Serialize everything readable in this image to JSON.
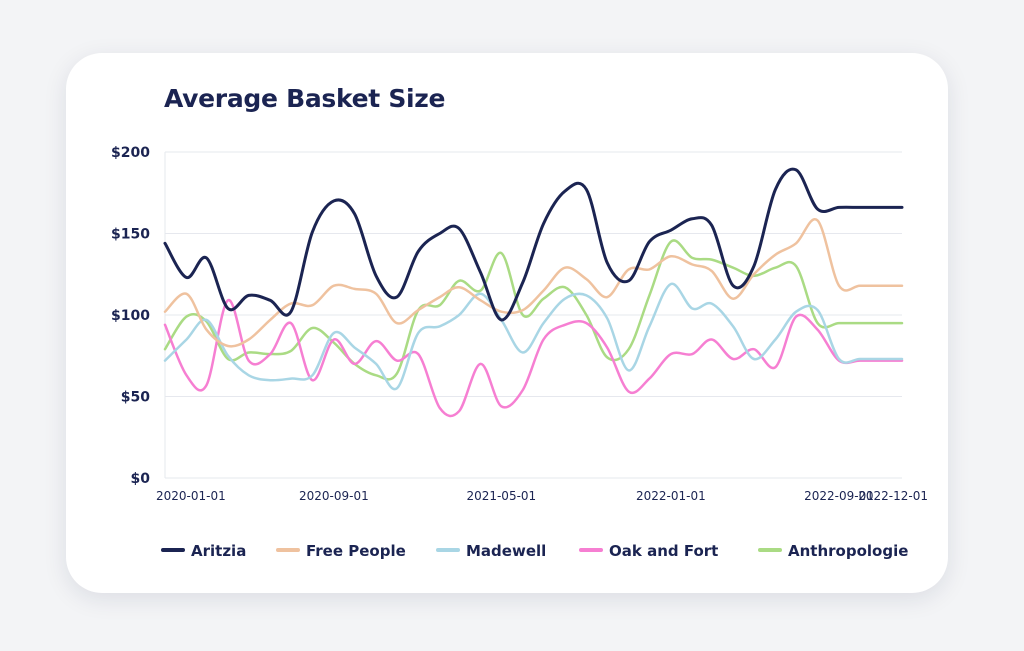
{
  "chart_data": {
    "type": "line",
    "title": "Average Basket Size",
    "xlabel": "",
    "ylabel": "",
    "ylim": [
      0,
      200
    ],
    "yticks": [
      0,
      50,
      100,
      150,
      200
    ],
    "ytick_labels": [
      "$0",
      "$50",
      "$100",
      "$150",
      "$200"
    ],
    "xrange": [
      "2020-01-01",
      "2022-12-01"
    ],
    "xtick_labels": [
      "2020-01-01",
      "2020-09-01",
      "2021-05-01",
      "2022-01-01",
      "2022-09-01",
      "2022-12-01"
    ],
    "x": [
      "2020-01-01",
      "2020-02-01",
      "2020-03-01",
      "2020-04-01",
      "2020-05-01",
      "2020-06-01",
      "2020-07-01",
      "2020-08-01",
      "2020-09-01",
      "2020-10-01",
      "2020-11-01",
      "2020-12-01",
      "2021-01-01",
      "2021-02-01",
      "2021-03-01",
      "2021-04-01",
      "2021-05-01",
      "2021-06-01",
      "2021-07-01",
      "2021-08-01",
      "2021-09-01",
      "2021-10-01",
      "2021-11-01",
      "2021-12-01",
      "2022-01-01",
      "2022-02-01",
      "2022-03-01",
      "2022-04-01",
      "2022-05-01",
      "2022-06-01",
      "2022-07-01",
      "2022-08-01",
      "2022-09-01",
      "2022-10-01",
      "2022-11-01",
      "2022-12-01"
    ],
    "grid": true,
    "legend_position": "bottom",
    "series": [
      {
        "name": "Aritzia",
        "color": "#1b2452",
        "values": [
          144,
          123,
          135,
          104,
          112,
          109,
          102,
          151,
          170,
          162,
          124,
          111,
          139,
          150,
          153,
          126,
          97,
          120,
          156,
          176,
          177,
          132,
          121,
          145,
          152,
          159,
          155,
          118,
          130,
          177,
          189,
          165,
          166,
          166,
          166,
          166
        ]
      },
      {
        "name": "Free People",
        "color": "#efc29f",
        "values": [
          102,
          113,
          91,
          81,
          85,
          97,
          107,
          106,
          118,
          116,
          113,
          95,
          103,
          111,
          117,
          109,
          102,
          103,
          115,
          129,
          122,
          111,
          128,
          128,
          136,
          131,
          127,
          110,
          125,
          137,
          144,
          158,
          118,
          118,
          118,
          118
        ]
      },
      {
        "name": "Madewell",
        "color": "#a9d6e5",
        "values": [
          72,
          85,
          97,
          75,
          63,
          60,
          61,
          63,
          89,
          80,
          70,
          55,
          89,
          93,
          100,
          113,
          97,
          77,
          95,
          110,
          112,
          98,
          66,
          93,
          119,
          104,
          107,
          93,
          73,
          85,
          102,
          103,
          73,
          73,
          73,
          73
        ]
      },
      {
        "name": "Oak and Fort",
        "color": "#f67fd2",
        "values": [
          94,
          63,
          57,
          109,
          72,
          76,
          95,
          60,
          85,
          70,
          84,
          72,
          76,
          43,
          41,
          70,
          44,
          54,
          85,
          94,
          95,
          80,
          53,
          61,
          76,
          76,
          85,
          73,
          79,
          68,
          99,
          91,
          72,
          72,
          72,
          72
        ]
      },
      {
        "name": "Anthropologie",
        "color": "#aadb84",
        "values": [
          79,
          99,
          96,
          73,
          77,
          76,
          78,
          92,
          83,
          70,
          63,
          64,
          103,
          106,
          121,
          115,
          138,
          100,
          110,
          117,
          100,
          74,
          79,
          112,
          145,
          135,
          134,
          129,
          124,
          129,
          130,
          95,
          95,
          95,
          95,
          95
        ]
      }
    ]
  }
}
